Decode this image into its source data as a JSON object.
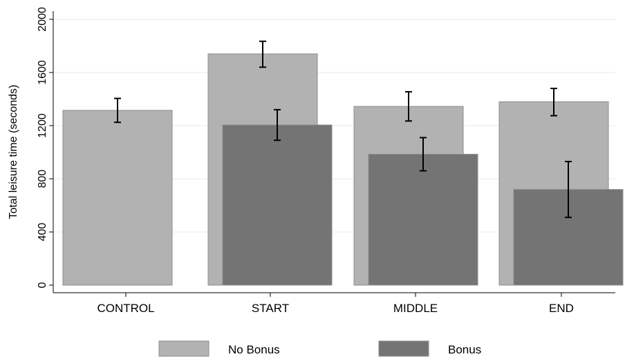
{
  "chart_data": {
    "type": "bar",
    "title": "",
    "xlabel": "",
    "ylabel": "Total leisure time (seconds)",
    "ylim": [
      0,
      2000
    ],
    "yticks": [
      0,
      400,
      800,
      1200,
      1600,
      2000
    ],
    "grid": true,
    "legend_position": "bottom",
    "categories": [
      "CONTROL",
      "START",
      "MIDDLE",
      "END"
    ],
    "series": [
      {
        "name": "No Bonus",
        "color": "#b2b2b2",
        "values": [
          1315,
          1740,
          1345,
          1380
        ],
        "err_low": [
          1225,
          1640,
          1235,
          1275
        ],
        "err_high": [
          1405,
          1835,
          1455,
          1480
        ]
      },
      {
        "name": "Bonus",
        "color": "#747474",
        "values": [
          null,
          1205,
          985,
          720
        ],
        "err_low": [
          null,
          1090,
          860,
          510
        ],
        "err_high": [
          null,
          1320,
          1110,
          930
        ]
      }
    ]
  }
}
